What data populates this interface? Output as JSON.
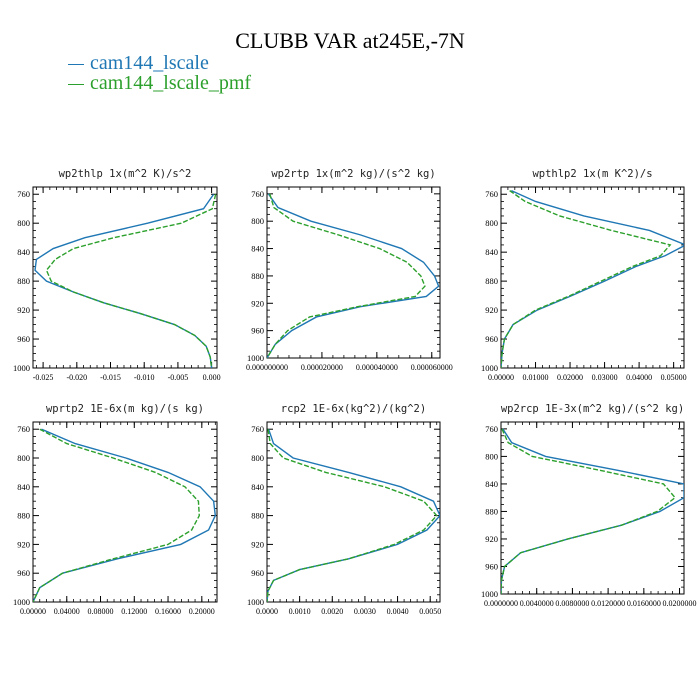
{
  "title": "CLUBB VAR at245E,-7N",
  "legend": [
    {
      "label": "cam144_lscale",
      "color": "#1f77b4"
    },
    {
      "label": "cam144_lscale_pmf",
      "color": "#2ca02c"
    }
  ],
  "chart_data": [
    {
      "type": "line",
      "title": "wp2thlp  1x(m^2 K)/s^2",
      "xlim": [
        -0.0265,
        0.0008
      ],
      "ylim": [
        1000,
        750
      ],
      "y_ticks": [
        "760",
        "800",
        "840",
        "880",
        "920",
        "960",
        "1000"
      ],
      "x_ticks": [
        "-0.025",
        "-0.020",
        "-0.015",
        "-0.010",
        "-0.005",
        "0.000"
      ],
      "x_tick_values": [
        -0.025,
        -0.02,
        -0.015,
        -0.01,
        -0.005,
        0
      ],
      "series": [
        {
          "y": [
            760,
            780,
            800,
            820,
            835,
            850,
            865,
            880,
            895,
            910,
            925,
            940,
            955,
            970,
            985,
            1000
          ],
          "x": [
            0.0003,
            -0.0012,
            -0.0095,
            -0.0188,
            -0.0235,
            -0.026,
            -0.0262,
            -0.0245,
            -0.0205,
            -0.016,
            -0.0105,
            -0.0055,
            -0.0025,
            -0.0008,
            -0.0002,
            0
          ]
        },
        {
          "y": [
            760,
            780,
            800,
            820,
            835,
            850,
            865,
            880,
            895,
            910,
            925,
            940,
            955,
            970,
            985,
            1000
          ],
          "x": [
            0.0006,
            0.0001,
            -0.0045,
            -0.0145,
            -0.0205,
            -0.0232,
            -0.0245,
            -0.0238,
            -0.0205,
            -0.016,
            -0.0105,
            -0.0055,
            -0.0025,
            -0.0008,
            -0.0002,
            0
          ]
        }
      ]
    },
    {
      "type": "line",
      "title": "wp2rtp  1x(m^2 kg)/(s^2 kg)",
      "xlim": [
        0,
        6.3e-05
      ],
      "ylim": [
        1000,
        750
      ],
      "y_ticks": [
        "760",
        "800",
        "840",
        "880",
        "920",
        "960",
        "1000"
      ],
      "x_ticks": [
        "0.000000000",
        "0.000020000",
        "0.000040000",
        "0.000060000"
      ],
      "x_tick_values": [
        0,
        2e-05,
        4e-05,
        6e-05
      ],
      "series": [
        {
          "y": [
            760,
            780,
            800,
            820,
            840,
            860,
            880,
            895,
            910,
            925,
            940,
            960,
            980,
            1000
          ],
          "x": [
            5e-07,
            4e-06,
            1.6e-05,
            3.4e-05,
            4.9e-05,
            5.7e-05,
            6.1e-05,
            6.25e-05,
            5.8e-05,
            3.4e-05,
            1.8e-05,
            9e-06,
            3e-06,
            0
          ]
        },
        {
          "y": [
            760,
            780,
            800,
            820,
            840,
            860,
            880,
            895,
            910,
            925,
            940,
            960,
            980,
            1000
          ],
          "x": [
            1e-06,
            2.5e-06,
            9.5e-06,
            2.6e-05,
            4.1e-05,
            5.1e-05,
            5.6e-05,
            5.75e-05,
            5.4e-05,
            3.3e-05,
            1.55e-05,
            7.5e-06,
            3e-06,
            0
          ]
        }
      ]
    },
    {
      "type": "line",
      "title": "wpthlp2  1x(m K^2)/s",
      "xlim": [
        0,
        0.053
      ],
      "ylim": [
        1000,
        750
      ],
      "y_ticks": [
        "760",
        "800",
        "840",
        "880",
        "920",
        "960",
        "1000"
      ],
      "x_ticks": [
        "0.00000",
        "0.01000",
        "0.02000",
        "0.03000",
        "0.04000",
        "0.05000"
      ],
      "x_tick_values": [
        0,
        0.01,
        0.02,
        0.03,
        0.04,
        0.05
      ],
      "series": [
        {
          "y": [
            755,
            770,
            790,
            810,
            830,
            845,
            860,
            880,
            900,
            920,
            940,
            960,
            980,
            1000
          ],
          "x": [
            0.003,
            0.01,
            0.024,
            0.043,
            0.0535,
            0.0475,
            0.039,
            0.03,
            0.0205,
            0.0105,
            0.0035,
            0.001,
            0.0003,
            0
          ]
        },
        {
          "y": [
            755,
            770,
            790,
            810,
            830,
            845,
            860,
            880,
            900,
            920,
            940,
            960,
            980,
            1000
          ],
          "x": [
            0.0025,
            0.007,
            0.017,
            0.032,
            0.049,
            0.0462,
            0.038,
            0.029,
            0.02,
            0.01,
            0.0035,
            0.001,
            0.0003,
            0
          ]
        }
      ]
    },
    {
      "type": "line",
      "title": "wprtp2  1E-6x(m kg)/(s kg)",
      "xlim": [
        0,
        0.218
      ],
      "ylim": [
        1000,
        750
      ],
      "y_ticks": [
        "760",
        "800",
        "840",
        "880",
        "920",
        "960",
        "1000"
      ],
      "x_ticks": [
        "0.00000",
        "0.04000",
        "0.08000",
        "0.12000",
        "0.16000",
        "0.20000"
      ],
      "x_tick_values": [
        0,
        0.04,
        0.08,
        0.12,
        0.16,
        0.2
      ],
      "series": [
        {
          "y": [
            760,
            780,
            800,
            820,
            840,
            860,
            880,
            900,
            920,
            940,
            960,
            980,
            1000
          ],
          "x": [
            0.01,
            0.05,
            0.11,
            0.16,
            0.198,
            0.214,
            0.216,
            0.208,
            0.175,
            0.1,
            0.035,
            0.008,
            0
          ]
        },
        {
          "y": [
            760,
            780,
            800,
            820,
            840,
            860,
            880,
            900,
            920,
            940,
            960,
            980,
            1000
          ],
          "x": [
            0.008,
            0.04,
            0.095,
            0.145,
            0.18,
            0.196,
            0.197,
            0.188,
            0.16,
            0.095,
            0.035,
            0.008,
            0
          ]
        }
      ]
    },
    {
      "type": "line",
      "title": "rcp2  1E-6x(kg^2)/(kg^2)",
      "xlim": [
        0,
        0.0053
      ],
      "ylim": [
        1000,
        750
      ],
      "y_ticks": [
        "760",
        "800",
        "840",
        "880",
        "920",
        "960",
        "1000"
      ],
      "x_ticks": [
        "0.0000",
        "0.0010",
        "0.0020",
        "0.0030",
        "0.0040",
        "0.0050"
      ],
      "x_tick_values": [
        0,
        0.001,
        0.002,
        0.003,
        0.004,
        0.005
      ],
      "series": [
        {
          "y": [
            760,
            780,
            800,
            820,
            840,
            860,
            880,
            900,
            920,
            940,
            955,
            970,
            985,
            1000
          ],
          "x": [
            5e-05,
            0.0002,
            0.0008,
            0.0025,
            0.0041,
            0.0051,
            0.0053,
            0.0049,
            0.004,
            0.0025,
            0.001,
            0.0002,
            3e-05,
            0
          ]
        },
        {
          "y": [
            760,
            780,
            800,
            820,
            840,
            860,
            880,
            900,
            920,
            940,
            955,
            970,
            985,
            1000
          ],
          "x": [
            3e-05,
            0.0001,
            0.0005,
            0.0018,
            0.0036,
            0.0048,
            0.0052,
            0.0048,
            0.0039,
            0.0025,
            0.001,
            0.0002,
            3e-05,
            0
          ]
        }
      ]
    },
    {
      "type": "line",
      "title": "wp2rcp  1E-3x(m^2 kg)/(s^2 kg)",
      "xlim": [
        0,
        0.0205
      ],
      "ylim": [
        1000,
        750
      ],
      "y_ticks": [
        "760",
        "800",
        "840",
        "880",
        "920",
        "960",
        "1000"
      ],
      "x_ticks": [
        "0.0000000",
        "0.0040000",
        "0.0080000",
        "0.0120000",
        "0.0160000",
        "0.0200000"
      ],
      "x_tick_values": [
        0,
        0.004,
        0.008,
        0.012,
        0.016,
        0.02
      ],
      "series": [
        {
          "y": [
            760,
            780,
            800,
            820,
            840,
            860,
            880,
            900,
            920,
            940,
            960,
            980,
            1000
          ],
          "x": [
            0.0002,
            0.0012,
            0.005,
            0.013,
            0.0205,
            0.0205,
            0.0178,
            0.0135,
            0.0075,
            0.0022,
            0.0004,
            5e-05,
            0
          ]
        },
        {
          "y": [
            760,
            780,
            800,
            820,
            840,
            860,
            880,
            900,
            920,
            940,
            960,
            980,
            1000
          ],
          "x": [
            0.0001,
            0.0008,
            0.0035,
            0.011,
            0.0182,
            0.0195,
            0.0175,
            0.0135,
            0.0075,
            0.0022,
            0.0004,
            5e-05,
            0
          ]
        }
      ]
    }
  ]
}
